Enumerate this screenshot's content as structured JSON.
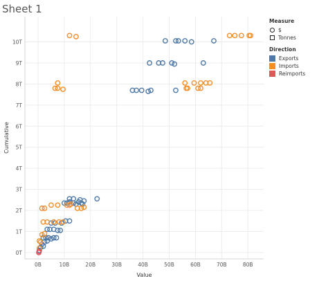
{
  "sheet": {
    "title": "Sheet 1"
  },
  "legend": {
    "measure_title": "Measure",
    "measure_items": [
      {
        "label": "$",
        "shape": "circle"
      },
      {
        "label": "Tonnes",
        "shape": "square"
      }
    ],
    "direction_title": "Direction",
    "direction_items": [
      {
        "label": "Exports",
        "color": "#4e79a7"
      },
      {
        "label": "Imports",
        "color": "#f28e2b"
      },
      {
        "label": "Reimports",
        "color": "#e15759"
      }
    ]
  },
  "chart_data": {
    "type": "scatter",
    "xlabel": "Value",
    "ylabel": "Cumulative",
    "xlim": [
      -5,
      86
    ],
    "ylim": [
      -0.3,
      11.2
    ],
    "x_ticks": [
      0,
      10,
      20,
      30,
      40,
      50,
      60,
      70,
      80
    ],
    "x_tick_labels": [
      "0B",
      "10B",
      "20B",
      "30B",
      "40B",
      "50B",
      "60B",
      "70B",
      "80B"
    ],
    "y_ticks": [
      0,
      1,
      2,
      3,
      4,
      5,
      6,
      7,
      8,
      9,
      10
    ],
    "y_tick_labels": [
      "0T",
      "1T",
      "2T",
      "3T",
      "4T",
      "5T",
      "6T",
      "7T",
      "8T",
      "9T",
      "10T"
    ],
    "grid": true,
    "legend_position": "right",
    "series": [
      {
        "name": "Exports",
        "color": "#4e79a7",
        "points": [
          [
            48.5,
            10.05
          ],
          [
            52.5,
            10.05
          ],
          [
            53.5,
            10.05
          ],
          [
            56,
            10.05
          ],
          [
            58.5,
            10.0
          ],
          [
            67,
            10.05
          ],
          [
            42.5,
            9.0
          ],
          [
            46,
            9.0
          ],
          [
            47.5,
            9.0
          ],
          [
            51,
            9.0
          ],
          [
            52,
            8.95
          ],
          [
            63,
            9.0
          ],
          [
            36,
            7.7
          ],
          [
            37.5,
            7.7
          ],
          [
            39.5,
            7.7
          ],
          [
            42,
            7.65
          ],
          [
            43,
            7.7
          ],
          [
            52.5,
            7.7
          ],
          [
            22.5,
            2.55
          ],
          [
            12,
            2.55
          ],
          [
            13.5,
            2.55
          ],
          [
            16,
            2.5
          ],
          [
            17.5,
            2.45
          ],
          [
            10,
            2.35
          ],
          [
            11,
            2.35
          ],
          [
            12,
            2.4
          ],
          [
            12.5,
            2.3
          ],
          [
            13.5,
            2.35
          ],
          [
            14.5,
            2.3
          ],
          [
            15.5,
            2.4
          ],
          [
            16.5,
            2.35
          ],
          [
            17,
            2.3
          ],
          [
            10.5,
            1.5
          ],
          [
            12,
            1.5
          ],
          [
            9,
            1.4
          ],
          [
            6.5,
            1.4
          ],
          [
            5,
            1.4
          ],
          [
            3.5,
            1.1
          ],
          [
            4.5,
            1.1
          ],
          [
            6,
            1.1
          ],
          [
            7.5,
            1.05
          ],
          [
            8.5,
            1.05
          ],
          [
            2,
            0.7
          ],
          [
            3,
            0.7
          ],
          [
            4,
            0.7
          ],
          [
            5,
            0.65
          ],
          [
            6,
            0.7
          ],
          [
            7,
            0.7
          ],
          [
            2.5,
            0.5
          ],
          [
            3.5,
            0.55
          ],
          [
            1.5,
            0.4
          ],
          [
            2,
            0.3
          ],
          [
            1,
            0.25
          ],
          [
            0.5,
            0.1
          ]
        ]
      },
      {
        "name": "Imports",
        "color": "#f28e2b",
        "points": [
          [
            12,
            10.3
          ],
          [
            14.5,
            10.25
          ],
          [
            73,
            10.3
          ],
          [
            75,
            10.3
          ],
          [
            77.5,
            10.3
          ],
          [
            80.5,
            10.3
          ],
          [
            81,
            10.3
          ],
          [
            7.5,
            8.05
          ],
          [
            7.5,
            7.8
          ],
          [
            6.5,
            7.8
          ],
          [
            9.5,
            7.75
          ],
          [
            56,
            8.05
          ],
          [
            59.5,
            8.05
          ],
          [
            62,
            8.05
          ],
          [
            64,
            8.05
          ],
          [
            65.5,
            8.05
          ],
          [
            56.5,
            7.8
          ],
          [
            57,
            7.8
          ],
          [
            61,
            7.8
          ],
          [
            62,
            7.8
          ],
          [
            1.5,
            2.1
          ],
          [
            2.5,
            2.1
          ],
          [
            5,
            2.25
          ],
          [
            7.5,
            2.25
          ],
          [
            12,
            2.25
          ],
          [
            15,
            2.1
          ],
          [
            16.5,
            2.1
          ],
          [
            17.5,
            2.15
          ],
          [
            11,
            2.25
          ],
          [
            12.5,
            2.3
          ],
          [
            2,
            1.45
          ],
          [
            3.5,
            1.45
          ],
          [
            6,
            1.45
          ],
          [
            8,
            1.45
          ],
          [
            9.5,
            1.45
          ],
          [
            1.5,
            0.85
          ],
          [
            2.5,
            0.9
          ],
          [
            0.5,
            0.55
          ],
          [
            1,
            0.5
          ],
          [
            0.5,
            0.2
          ]
        ]
      },
      {
        "name": "Reimports",
        "color": "#e15759",
        "points": [
          [
            0.3,
            0.0
          ],
          [
            0.4,
            0.05
          ]
        ]
      }
    ]
  }
}
